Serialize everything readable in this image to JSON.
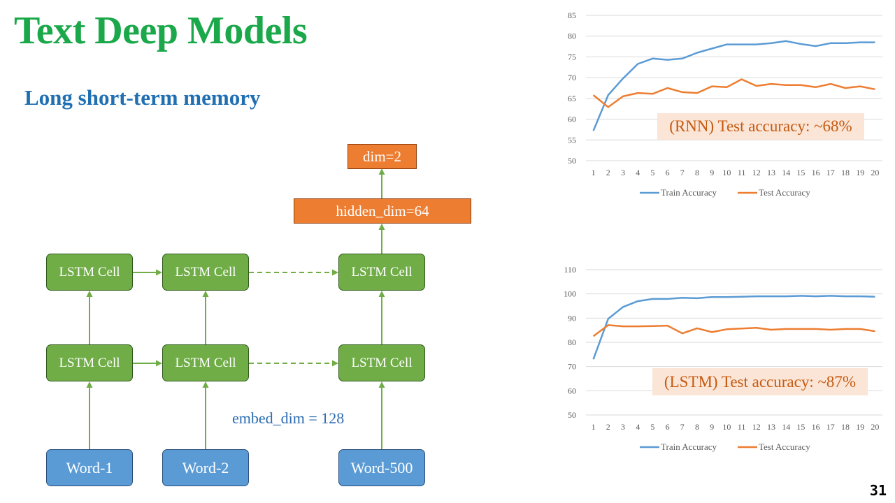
{
  "slide": {
    "title": "Text Deep Models",
    "subtitle": "Long short-term memory",
    "page_number": "31"
  },
  "diagram": {
    "output_box": "dim=2",
    "hidden_box": "hidden_dim=64",
    "lstm_label": "LSTM Cell",
    "words": [
      "Word-1",
      "Word-2",
      "Word-500"
    ],
    "embed_label": "embed_dim = 128",
    "colors": {
      "lstm": "#70ad47",
      "word": "#5b9bd5",
      "dense": "#ed7d31",
      "arrow": "#70ad47"
    }
  },
  "chart_data": [
    {
      "type": "line",
      "annotation": "(RNN) Test accuracy: ~68%",
      "categories": [
        "1",
        "2",
        "3",
        "4",
        "5",
        "6",
        "7",
        "8",
        "9",
        "10",
        "11",
        "12",
        "13",
        "14",
        "15",
        "16",
        "17",
        "18",
        "19",
        "20"
      ],
      "yticks": [
        50,
        55,
        60,
        65,
        70,
        75,
        80,
        85
      ],
      "ylim": [
        50,
        85
      ],
      "grid": true,
      "legend": "bottom",
      "series": [
        {
          "name": "Train Accuracy",
          "color": "#5b9bd5",
          "values": [
            57.2,
            65.8,
            69.8,
            73.3,
            74.6,
            74.3,
            74.6,
            76.0,
            77.0,
            78.0,
            78.0,
            78.0,
            78.3,
            78.8,
            78.1,
            77.6,
            78.3,
            78.3,
            78.5,
            78.5
          ]
        },
        {
          "name": "Test Accuracy",
          "color": "#ed7d31",
          "values": [
            65.8,
            62.9,
            65.5,
            66.3,
            66.1,
            67.5,
            66.5,
            66.3,
            67.9,
            67.7,
            69.6,
            68.0,
            68.5,
            68.2,
            68.2,
            67.7,
            68.5,
            67.5,
            67.9,
            67.2
          ]
        }
      ]
    },
    {
      "type": "line",
      "annotation": "(LSTM) Test accuracy: ~87%",
      "categories": [
        "1",
        "2",
        "3",
        "4",
        "5",
        "6",
        "7",
        "8",
        "9",
        "10",
        "11",
        "12",
        "13",
        "14",
        "15",
        "16",
        "17",
        "18",
        "19",
        "20"
      ],
      "yticks": [
        50,
        60,
        70,
        80,
        90,
        100,
        110
      ],
      "ylim": [
        50,
        110
      ],
      "grid": true,
      "legend": "bottom",
      "series": [
        {
          "name": "Train Accuracy",
          "color": "#5b9bd5",
          "values": [
            73.0,
            89.7,
            94.6,
            97.0,
            97.9,
            97.9,
            98.4,
            98.2,
            98.7,
            98.7,
            98.8,
            99.0,
            99.0,
            99.0,
            99.2,
            99.0,
            99.2,
            99.0,
            99.0,
            98.8
          ]
        },
        {
          "name": "Test Accuracy",
          "color": "#ed7d31",
          "values": [
            82.5,
            87.1,
            86.6,
            86.6,
            86.7,
            86.9,
            83.7,
            85.8,
            84.2,
            85.4,
            85.7,
            86.0,
            85.2,
            85.5,
            85.5,
            85.5,
            85.2,
            85.5,
            85.5,
            84.6
          ]
        }
      ]
    }
  ]
}
